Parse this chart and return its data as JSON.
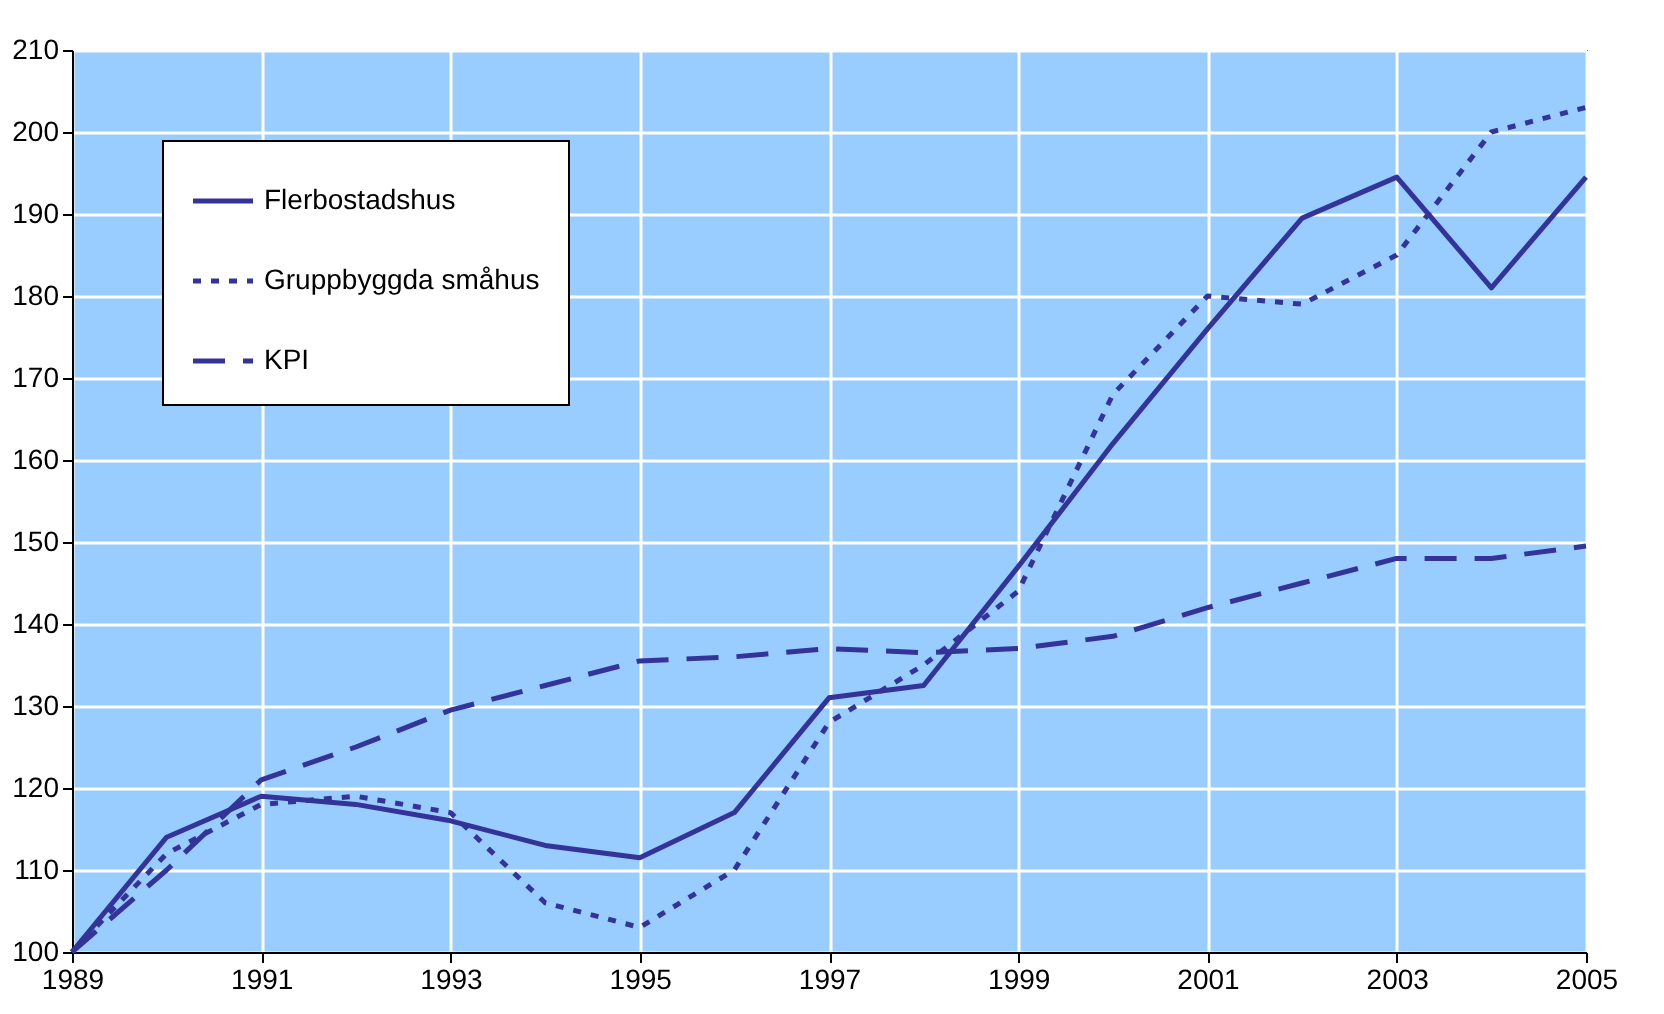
{
  "chart_data": {
    "type": "line",
    "x": [
      1989,
      1990,
      1991,
      1992,
      1993,
      1994,
      1995,
      1996,
      1997,
      1998,
      1999,
      2000,
      2001,
      2002,
      2003,
      2004,
      2005
    ],
    "series": [
      {
        "name": "Flerbostadshus",
        "color": "#333399",
        "line_style": "solid",
        "values": [
          100,
          114,
          119,
          118,
          116,
          113,
          111.5,
          117,
          131,
          132.5,
          147,
          162,
          176,
          189.5,
          194.5,
          181,
          194.5
        ]
      },
      {
        "name": "Gruppbyggda småhus",
        "color": "#333399",
        "line_style": "dotted",
        "values": [
          100,
          112,
          118,
          119,
          117,
          106,
          103,
          110,
          128,
          135,
          144,
          168,
          180,
          179,
          185,
          200,
          203
        ]
      },
      {
        "name": "KPI",
        "color": "#333399",
        "line_style": "dashed",
        "values": [
          100,
          110,
          121,
          125,
          129.5,
          132.5,
          135.5,
          136,
          137,
          136.5,
          137,
          138.5,
          142,
          145,
          148,
          148,
          149.5
        ]
      }
    ],
    "xlim": [
      1989,
      2005
    ],
    "xticks": [
      1989,
      1991,
      1993,
      1995,
      1997,
      1999,
      2001,
      2003,
      2005
    ],
    "ylim": [
      100,
      210
    ],
    "yticks": [
      100,
      110,
      120,
      130,
      140,
      150,
      160,
      170,
      180,
      190,
      200,
      210
    ],
    "grid": true,
    "legend": "top left",
    "marker": "none"
  }
}
